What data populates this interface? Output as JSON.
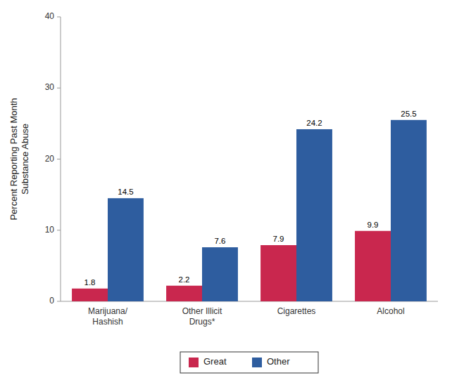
{
  "chart_data": {
    "type": "bar",
    "y_label": "Percent Reporting Past Month\nSubstance Abuse",
    "categories": [
      "Marijuana/\nHashish",
      "Other Illicit\nDrugs*",
      "Cigarettes",
      "Alcohol"
    ],
    "series": [
      {
        "name": "Great",
        "color": "#C9274E",
        "values": [
          1.8,
          2.2,
          7.9,
          9.9
        ]
      },
      {
        "name": "Other",
        "color": "#2E5D9F",
        "values": [
          14.5,
          7.6,
          24.2,
          25.5
        ]
      }
    ],
    "ylim": [
      0,
      40
    ],
    "yticks": [
      0,
      10,
      20,
      30,
      40
    ],
    "grid": false,
    "legend": "bottom",
    "data_labels": true
  }
}
